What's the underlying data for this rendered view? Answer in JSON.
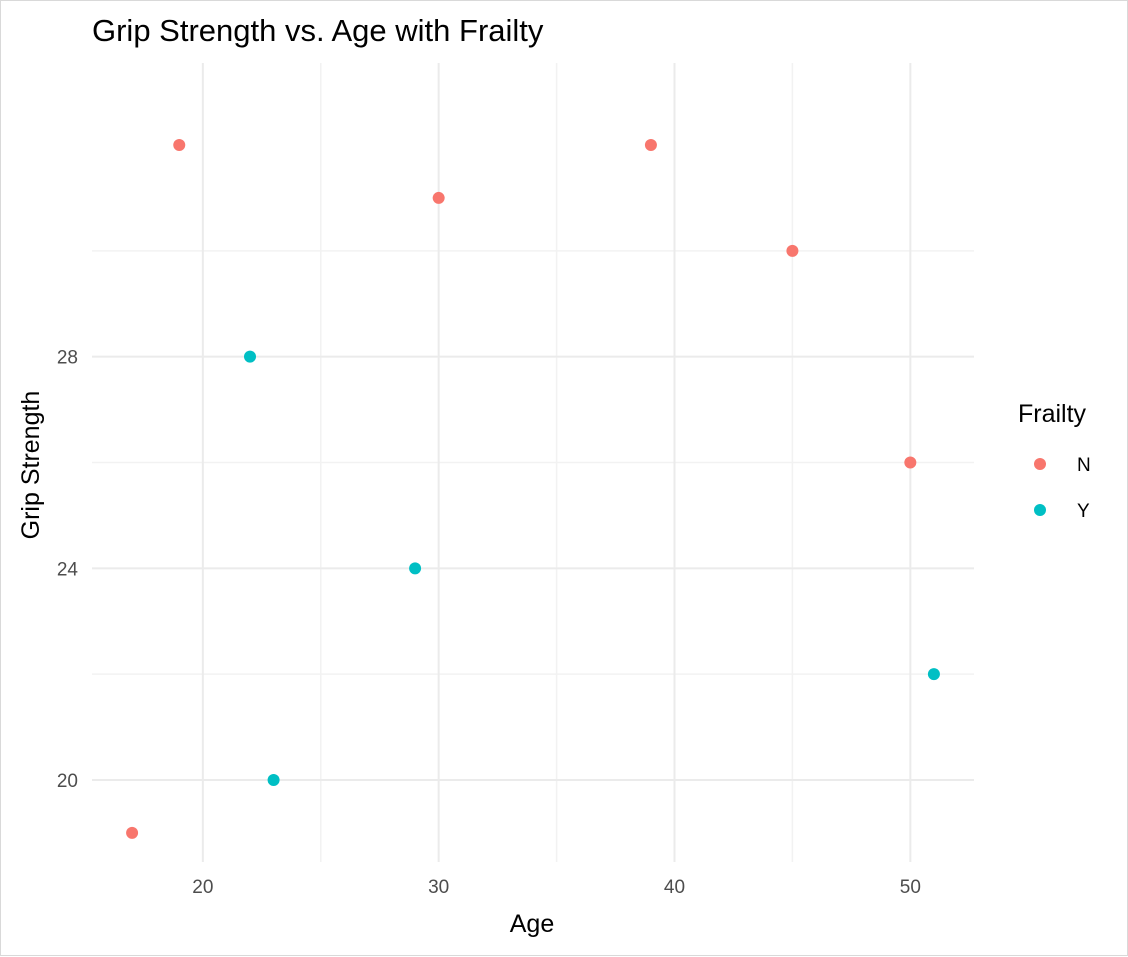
{
  "chart_data": {
    "type": "scatter",
    "title": "Grip Strength vs. Age with Frailty",
    "xlabel": "Age",
    "ylabel": "Grip Strength",
    "xlim": [
      15.3,
      52.7
    ],
    "ylim": [
      18.45,
      33.55
    ],
    "x_ticks": [
      20,
      30,
      40,
      50
    ],
    "y_ticks": [
      20,
      24,
      28
    ],
    "x_minor": [
      25,
      35,
      45
    ],
    "y_minor": [
      22,
      26,
      30
    ],
    "grid": true,
    "legend": {
      "title": "Frailty",
      "placement": "right"
    },
    "series": [
      {
        "name": "N",
        "color": "#F8766D",
        "points": [
          {
            "x": 17,
            "y": 19
          },
          {
            "x": 19,
            "y": 32
          },
          {
            "x": 30,
            "y": 31
          },
          {
            "x": 39,
            "y": 32
          },
          {
            "x": 45,
            "y": 30
          },
          {
            "x": 50,
            "y": 26
          }
        ]
      },
      {
        "name": "Y",
        "color": "#00BFC4",
        "points": [
          {
            "x": 22,
            "y": 28
          },
          {
            "x": 23,
            "y": 20
          },
          {
            "x": 29,
            "y": 24
          },
          {
            "x": 51,
            "y": 22
          }
        ]
      }
    ]
  }
}
